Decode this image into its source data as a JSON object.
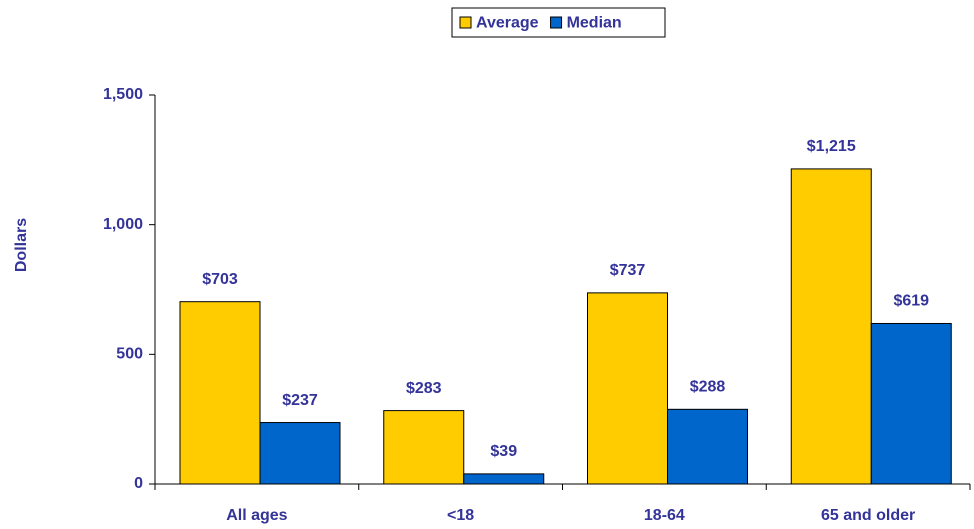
{
  "chart_data": {
    "type": "bar",
    "categories": [
      "All ages",
      "<18",
      "18-64",
      "65 and older"
    ],
    "series": [
      {
        "name": "Average",
        "color": "#ffcc00",
        "values": [
          703,
          283,
          737,
          1215
        ],
        "value_labels": [
          "$703",
          "$283",
          "$737",
          "$1,215"
        ]
      },
      {
        "name": "Median",
        "color": "#0066cc",
        "values": [
          237,
          39,
          288,
          619
        ],
        "value_labels": [
          "$237",
          "$39",
          "$288",
          "$619"
        ]
      }
    ],
    "ylabel": "Dollars",
    "ylim": [
      0,
      1500
    ],
    "yticks": [
      0,
      500,
      {
        "value": 1000,
        "label": "1,000"
      },
      {
        "value": 1500,
        "label": "1,500"
      }
    ],
    "legend": "top"
  }
}
